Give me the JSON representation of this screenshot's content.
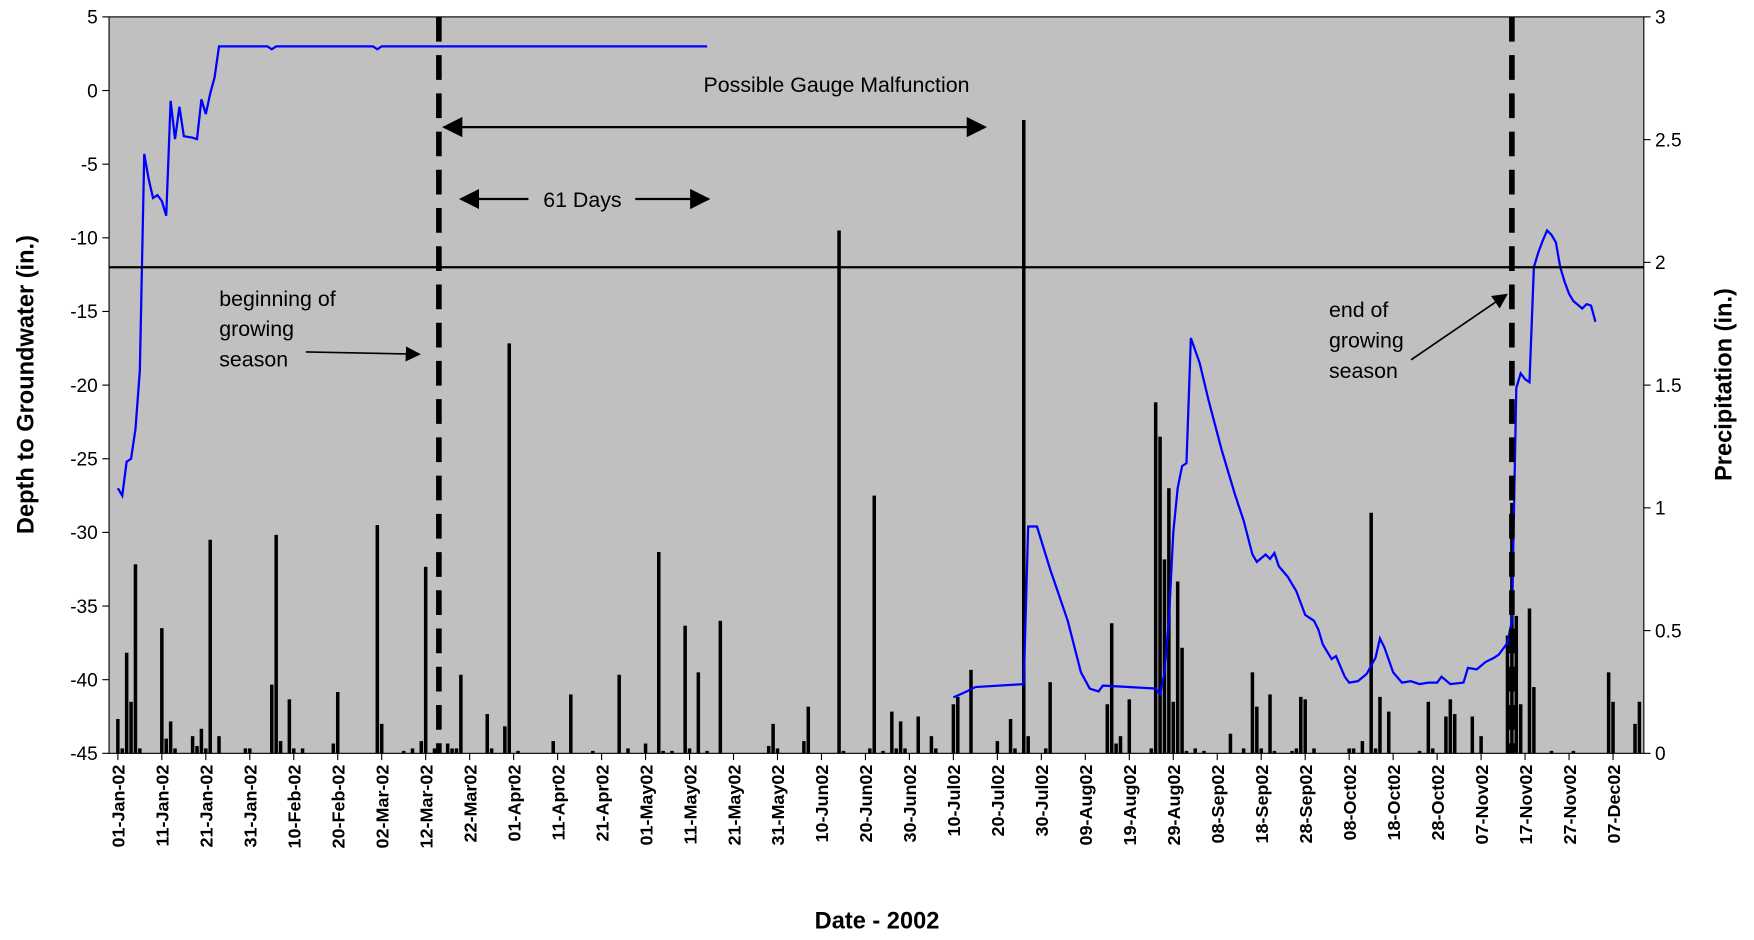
{
  "chart_data": {
    "type": "combo",
    "x_label": "Date - 2002",
    "y_label": "Depth to Groundwater (in.)",
    "y2_label": "Precipitation (in.)",
    "xlim": [
      "2001-12-30",
      "2002-12-14"
    ],
    "xticks": [
      {
        "value": "2002-01-01",
        "label": "01-Jan-02"
      },
      {
        "value": "2002-01-11",
        "label": "11-Jan-02"
      },
      {
        "value": "2002-01-21",
        "label": "21-Jan-02"
      },
      {
        "value": "2002-01-31",
        "label": "31-Jan-02"
      },
      {
        "value": "2002-02-10",
        "label": "10-Feb-02"
      },
      {
        "value": "2002-02-20",
        "label": "20-Feb-02"
      },
      {
        "value": "2002-03-02",
        "label": "02-Mar-02"
      },
      {
        "value": "2002-03-12",
        "label": "12-Mar-02"
      },
      {
        "value": "2002-03-22",
        "label": "22-Mar02"
      },
      {
        "value": "2002-04-01",
        "label": "01-Apr02"
      },
      {
        "value": "2002-04-11",
        "label": "11-Apr02"
      },
      {
        "value": "2002-04-21",
        "label": "21-Apr02"
      },
      {
        "value": "2002-05-01",
        "label": "01-May02"
      },
      {
        "value": "2002-05-11",
        "label": "11-May02"
      },
      {
        "value": "2002-05-21",
        "label": "21-May02"
      },
      {
        "value": "2002-05-31",
        "label": "31-May02"
      },
      {
        "value": "2002-06-10",
        "label": "10-Jun02"
      },
      {
        "value": "2002-06-20",
        "label": "20-Jun02"
      },
      {
        "value": "2002-06-30",
        "label": "30-Jun02"
      },
      {
        "value": "2002-07-10",
        "label": "10-Jul02"
      },
      {
        "value": "2002-07-20",
        "label": "20-Jul02"
      },
      {
        "value": "2002-07-30",
        "label": "30-Jul02"
      },
      {
        "value": "2002-08-09",
        "label": "09-Aug02"
      },
      {
        "value": "2002-08-19",
        "label": "19-Aug02"
      },
      {
        "value": "2002-08-29",
        "label": "29-Aug02"
      },
      {
        "value": "2002-09-08",
        "label": "08-Sep02"
      },
      {
        "value": "2002-09-18",
        "label": "18-Sep02"
      },
      {
        "value": "2002-09-28",
        "label": "28-Sep02"
      },
      {
        "value": "2002-10-08",
        "label": "08-Oct02"
      },
      {
        "value": "2002-10-18",
        "label": "18-Oct02"
      },
      {
        "value": "2002-10-28",
        "label": "28-Oct02"
      },
      {
        "value": "2002-11-07",
        "label": "07-Nov02"
      },
      {
        "value": "2002-11-17",
        "label": "17-Nov02"
      },
      {
        "value": "2002-11-27",
        "label": "27-Nov02"
      },
      {
        "value": "2002-12-07",
        "label": "07-Dec02"
      }
    ],
    "ylim": [
      -45,
      5
    ],
    "yticks": [
      5,
      0,
      -5,
      -10,
      -15,
      -20,
      -25,
      -30,
      -35,
      -40,
      -45
    ],
    "y2lim": [
      0,
      3
    ],
    "y2ticks": [
      0,
      0.5,
      1,
      1.5,
      2,
      2.5,
      3
    ],
    "background": "#c0c0c0",
    "hline": -12,
    "vlines": [
      "2002-03-15",
      "2002-11-14"
    ],
    "annotations": {
      "malfunction": "Possible Gauge Malfunction",
      "days": "61 Days",
      "begin": [
        "beginning of",
        "growing",
        "season"
      ],
      "end": [
        "end of",
        "growing",
        "season"
      ]
    },
    "series": [
      {
        "type": "bar",
        "axis": "y2",
        "color": "#000000",
        "x": [
          "2002-01-01",
          "2002-01-02",
          "2002-01-03",
          "2002-01-04",
          "2002-01-05",
          "2002-01-06",
          "2002-01-11",
          "2002-01-12",
          "2002-01-13",
          "2002-01-14",
          "2002-01-18",
          "2002-01-19",
          "2002-01-20",
          "2002-01-21",
          "2002-01-22",
          "2002-01-24",
          "2002-01-30",
          "2002-01-31",
          "2002-02-05",
          "2002-02-06",
          "2002-02-07",
          "2002-02-09",
          "2002-02-10",
          "2002-02-12",
          "2002-02-19",
          "2002-02-20",
          "2002-03-01",
          "2002-03-02",
          "2002-03-07",
          "2002-03-09",
          "2002-03-11",
          "2002-03-12",
          "2002-03-14",
          "2002-03-15",
          "2002-03-17",
          "2002-03-18",
          "2002-03-19",
          "2002-03-20",
          "2002-03-26",
          "2002-03-27",
          "2002-03-30",
          "2002-03-31",
          "2002-04-02",
          "2002-04-10",
          "2002-04-14",
          "2002-04-19",
          "2002-04-25",
          "2002-04-27",
          "2002-05-01",
          "2002-05-04",
          "2002-05-05",
          "2002-05-07",
          "2002-05-10",
          "2002-05-11",
          "2002-05-13",
          "2002-05-15",
          "2002-05-18",
          "2002-05-29",
          "2002-05-30",
          "2002-05-31",
          "2002-06-06",
          "2002-06-07",
          "2002-06-14",
          "2002-06-15",
          "2002-06-21",
          "2002-06-22",
          "2002-06-24",
          "2002-06-26",
          "2002-06-27",
          "2002-06-28",
          "2002-06-29",
          "2002-07-02",
          "2002-07-05",
          "2002-07-06",
          "2002-07-10",
          "2002-07-11",
          "2002-07-14",
          "2002-07-20",
          "2002-07-23",
          "2002-07-24",
          "2002-07-26",
          "2002-07-27",
          "2002-07-31",
          "2002-08-01",
          "2002-08-14",
          "2002-08-15",
          "2002-08-16",
          "2002-08-17",
          "2002-08-19",
          "2002-08-24",
          "2002-08-25",
          "2002-08-26",
          "2002-08-27",
          "2002-08-28",
          "2002-08-29",
          "2002-08-30",
          "2002-08-31",
          "2002-09-01",
          "2002-09-03",
          "2002-09-05",
          "2002-09-11",
          "2002-09-14",
          "2002-09-16",
          "2002-09-17",
          "2002-09-18",
          "2002-09-20",
          "2002-09-21",
          "2002-09-25",
          "2002-09-26",
          "2002-09-27",
          "2002-09-28",
          "2002-09-30",
          "2002-10-08",
          "2002-10-09",
          "2002-10-11",
          "2002-10-13",
          "2002-10-14",
          "2002-10-15",
          "2002-10-17",
          "2002-10-24",
          "2002-10-26",
          "2002-10-27",
          "2002-10-30",
          "2002-10-31",
          "2002-11-01",
          "2002-11-05",
          "2002-11-07",
          "2002-11-13",
          "2002-11-14",
          "2002-11-15",
          "2002-11-16",
          "2002-11-18",
          "2002-11-19",
          "2002-11-23",
          "2002-11-28",
          "2002-12-06",
          "2002-12-07",
          "2002-12-12",
          "2002-12-13"
        ],
        "values": [
          0.14,
          0.02,
          0.41,
          0.21,
          0.77,
          0.02,
          0.51,
          0.06,
          0.13,
          0.02,
          0.07,
          0.03,
          0.1,
          0.02,
          0.87,
          0.07,
          0.02,
          0.02,
          0.28,
          0.89,
          0.05,
          0.22,
          0.02,
          0.02,
          0.04,
          0.25,
          0.93,
          0.12,
          0.01,
          0.02,
          0.05,
          0.76,
          0.02,
          0.02,
          0.04,
          0.02,
          0.02,
          0.32,
          0.16,
          0.02,
          0.11,
          1.67,
          0.01,
          0.05,
          0.24,
          0.01,
          0.32,
          0.02,
          0.04,
          0.82,
          0.01,
          0.01,
          0.52,
          0.02,
          0.33,
          0.01,
          0.54,
          0.03,
          0.12,
          0.02,
          0.05,
          0.19,
          2.13,
          0.01,
          0.02,
          1.05,
          0.01,
          0.17,
          0.02,
          0.13,
          0.02,
          0.15,
          0.07,
          0.02,
          0.2,
          0.23,
          0.34,
          0.05,
          0.14,
          0.02,
          2.58,
          0.07,
          0.02,
          0.29,
          0.2,
          0.53,
          0.04,
          0.07,
          0.22,
          0.02,
          1.43,
          1.29,
          0.79,
          1.08,
          0.21,
          0.7,
          0.43,
          0.01,
          0.02,
          0.01,
          0.08,
          0.02,
          0.33,
          0.19,
          0.02,
          0.24,
          0.01,
          0.01,
          0.02,
          0.23,
          0.22,
          0.02,
          0.02,
          0.02,
          0.05,
          0.98,
          0.02,
          0.23,
          0.17,
          0.01,
          0.21,
          0.02,
          0.15,
          0.22,
          0.16,
          0.15,
          0.07,
          0.48,
          1.02,
          0.56,
          0.2,
          0.59,
          0.27,
          0.01,
          0.01,
          0.33,
          0.21,
          0.12,
          0.21
        ]
      },
      {
        "type": "line",
        "color": "#0000ff",
        "x": [
          "2002-01-01",
          "2002-01-02",
          "2002-01-03",
          "2002-01-04",
          "2002-01-05",
          "2002-01-06",
          "2002-01-07",
          "2002-01-08",
          "2002-01-09",
          "2002-01-10",
          "2002-01-11",
          "2002-01-12",
          "2002-01-13",
          "2002-01-14",
          "2002-01-15",
          "2002-01-16",
          "2002-01-18",
          "2002-01-19",
          "2002-01-20",
          "2002-01-21",
          "2002-01-22",
          "2002-01-23",
          "2002-01-24",
          "2002-02-04",
          "2002-02-05",
          "2002-02-06",
          "2002-02-28",
          "2002-03-01",
          "2002-03-02",
          "2002-05-15",
          "2002-05-16",
          "2002-07-10",
          "2002-07-13",
          "2002-07-15",
          "2002-07-26",
          "2002-07-27",
          "2002-07-29",
          "2002-08-01",
          "2002-08-05",
          "2002-08-08",
          "2002-08-10",
          "2002-08-12",
          "2002-08-13",
          "2002-08-25",
          "2002-08-26",
          "2002-08-27",
          "2002-08-28",
          "2002-08-29",
          "2002-08-30",
          "2002-08-31",
          "2002-09-01",
          "2002-09-02",
          "2002-09-04",
          "2002-09-06",
          "2002-09-09",
          "2002-09-12",
          "2002-09-14",
          "2002-09-16",
          "2002-09-17",
          "2002-09-19",
          "2002-09-20",
          "2002-09-21",
          "2002-09-22",
          "2002-09-24",
          "2002-09-26",
          "2002-09-28",
          "2002-09-30",
          "2002-10-01",
          "2002-10-02",
          "2002-10-04",
          "2002-10-05",
          "2002-10-07",
          "2002-10-08",
          "2002-10-10",
          "2002-10-12",
          "2002-10-14",
          "2002-10-15",
          "2002-10-16",
          "2002-10-18",
          "2002-10-20",
          "2002-10-22",
          "2002-10-24",
          "2002-10-26",
          "2002-10-28",
          "2002-10-29",
          "2002-10-31",
          "2002-11-03",
          "2002-11-04",
          "2002-11-06",
          "2002-11-08",
          "2002-11-10",
          "2002-11-11",
          "2002-11-13",
          "2002-11-14",
          "2002-11-15",
          "2002-11-16",
          "2002-11-17",
          "2002-11-18",
          "2002-11-19",
          "2002-11-20",
          "2002-11-21",
          "2002-11-22",
          "2002-11-23",
          "2002-11-24",
          "2002-11-25",
          "2002-11-26",
          "2002-11-27",
          "2002-11-28",
          "2002-11-30",
          "2002-12-01",
          "2002-12-02",
          "2002-12-03"
        ],
        "values": [
          -27,
          -27.5,
          -25.2,
          -25,
          -23,
          -19,
          -4.3,
          -6,
          -7.3,
          -7.1,
          -7.5,
          -8.5,
          -0.7,
          -3.3,
          -1.1,
          -3.1,
          -3.2,
          -3.3,
          -0.6,
          -1.6,
          -0.2,
          0.9,
          3,
          3,
          2.8,
          3,
          3,
          2.8,
          3,
          3,
          null,
          -41.2,
          -40.8,
          -40.5,
          -40.3,
          -29.6,
          -29.6,
          -32.5,
          -36,
          -39.5,
          -40.6,
          -40.8,
          -40.4,
          -40.6,
          -41,
          -39.5,
          -36,
          -30,
          -27,
          -25.5,
          -25.3,
          -16.8,
          -18.5,
          -21,
          -24.4,
          -27.4,
          -29.2,
          -31.5,
          -32,
          -31.5,
          -31.8,
          -31.4,
          -32.3,
          -33,
          -34,
          -35.6,
          -36,
          -36.6,
          -37.6,
          -38.6,
          -38.4,
          -39.8,
          -40.2,
          -40.1,
          -39.6,
          -38.5,
          -37.2,
          -37.8,
          -39.5,
          -40.2,
          -40.1,
          -40.3,
          -40.2,
          -40.2,
          -39.8,
          -40.3,
          -40.2,
          -39.2,
          -39.3,
          -38.8,
          -38.5,
          -38.3,
          -37.5,
          -36,
          -20.2,
          -19.2,
          -19.6,
          -19.8,
          -12,
          -11,
          -10.2,
          -9.5,
          -9.8,
          -10.3,
          -12,
          -13,
          -13.8,
          -14.3,
          -14.8,
          -14.5,
          -14.6,
          -15.7
        ]
      }
    ]
  }
}
